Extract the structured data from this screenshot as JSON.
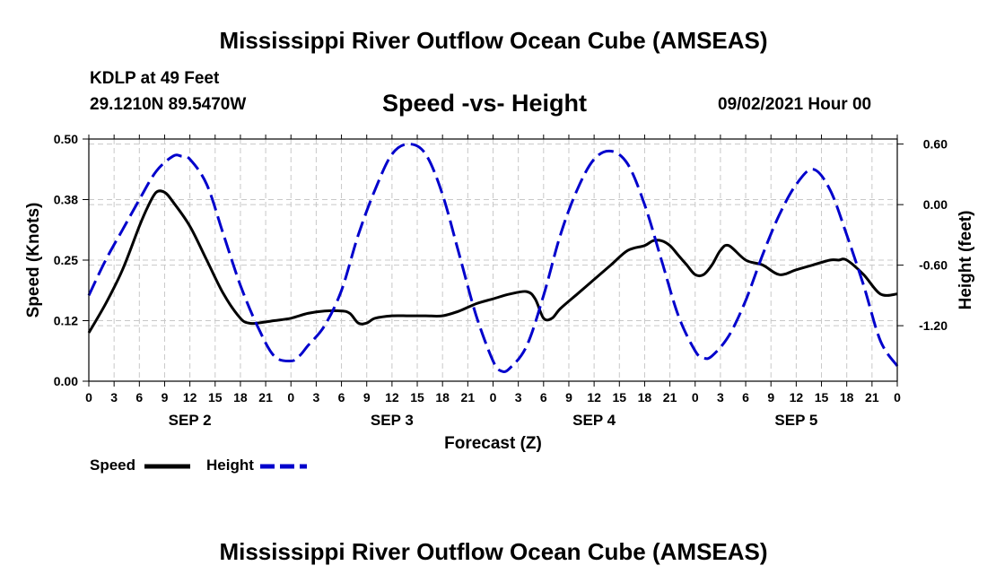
{
  "header": {
    "title": "Mississippi River Outflow Ocean Cube (AMSEAS)",
    "station": "KDLP at 49 Feet",
    "coords": "29.1210N  89.5470W",
    "subtitle": "Speed -vs- Height",
    "datetime": "09/02/2021 Hour 00"
  },
  "footer": {
    "title": "Mississippi River Outflow Ocean Cube (AMSEAS)"
  },
  "legend": {
    "speed_label": "Speed",
    "height_label": "Height"
  },
  "colors": {
    "speed": "#000000",
    "height": "#0000cc",
    "grid": "#c8c8c8"
  },
  "chart_data": {
    "type": "line",
    "title": "Speed -vs- Height",
    "xlabel": "Forecast (Z)",
    "ylabel": "Speed (Knots)",
    "y2label": "Height (feet)",
    "xlim": [
      0,
      96
    ],
    "ylim": [
      0,
      0.5
    ],
    "y2lim": [
      -1.75,
      0.65
    ],
    "x_ticks": [
      0,
      3,
      6,
      9,
      12,
      15,
      18,
      21,
      24,
      27,
      30,
      33,
      36,
      39,
      42,
      45,
      48,
      51,
      54,
      57,
      60,
      63,
      66,
      69,
      72,
      75,
      78,
      81,
      84,
      87,
      90,
      93,
      96
    ],
    "x_tick_labels": [
      "0",
      "3",
      "6",
      "9",
      "12",
      "15",
      "18",
      "21",
      "0",
      "3",
      "6",
      "9",
      "12",
      "15",
      "18",
      "21",
      "0",
      "3",
      "6",
      "9",
      "12",
      "15",
      "18",
      "21",
      "0",
      "3",
      "6",
      "9",
      "12",
      "15",
      "18",
      "21",
      "0"
    ],
    "day_labels": [
      {
        "label": "SEP 2",
        "x": 12
      },
      {
        "label": "SEP 3",
        "x": 36
      },
      {
        "label": "SEP 4",
        "x": 60
      },
      {
        "label": "SEP 5",
        "x": 84
      }
    ],
    "y_ticks": [
      0.0,
      0.125,
      0.25,
      0.375,
      0.5
    ],
    "y_tick_labels": [
      "0.00",
      "0.12",
      "0.25",
      "0.38",
      "0.50"
    ],
    "y2_ticks": [
      0.6,
      0.0,
      -0.6,
      -1.2
    ],
    "y2_tick_labels": [
      "0.60",
      "0.00",
      "-0.60",
      "-1.20"
    ],
    "grid": true,
    "series": [
      {
        "name": "Speed",
        "axis": "left",
        "style": "solid",
        "x": [
          0,
          2,
          4,
          6,
          7,
          8,
          9,
          10,
          12,
          14,
          16,
          18,
          19,
          20,
          22,
          24,
          26,
          28,
          30,
          31,
          32,
          33,
          34,
          36,
          38,
          40,
          42,
          44,
          46,
          48,
          50,
          52,
          53,
          54,
          55,
          56,
          58,
          60,
          62,
          64,
          66,
          67,
          68,
          69,
          70,
          71,
          72,
          73,
          74,
          75,
          76,
          78,
          80,
          82,
          84,
          86,
          88,
          89,
          90,
          92,
          94,
          96
        ],
        "values": [
          0.1,
          0.16,
          0.23,
          0.32,
          0.36,
          0.39,
          0.39,
          0.37,
          0.32,
          0.25,
          0.18,
          0.13,
          0.12,
          0.12,
          0.125,
          0.13,
          0.14,
          0.145,
          0.145,
          0.14,
          0.12,
          0.12,
          0.13,
          0.135,
          0.135,
          0.135,
          0.135,
          0.145,
          0.16,
          0.17,
          0.18,
          0.185,
          0.17,
          0.13,
          0.13,
          0.15,
          0.18,
          0.21,
          0.24,
          0.27,
          0.28,
          0.29,
          0.29,
          0.28,
          0.26,
          0.24,
          0.22,
          0.22,
          0.24,
          0.27,
          0.28,
          0.25,
          0.24,
          0.22,
          0.23,
          0.24,
          0.25,
          0.25,
          0.25,
          0.22,
          0.18,
          0.18
        ]
      },
      {
        "name": "Height",
        "axis": "right",
        "style": "dashed",
        "x": [
          0,
          2,
          4,
          6,
          8,
          10,
          11,
          12,
          14,
          16,
          18,
          20,
          22,
          24,
          25,
          26,
          28,
          30,
          32,
          34,
          36,
          38,
          40,
          42,
          44,
          46,
          48,
          49,
          50,
          52,
          54,
          56,
          58,
          60,
          62,
          64,
          66,
          68,
          70,
          72,
          73,
          74,
          76,
          78,
          80,
          82,
          84,
          86,
          88,
          90,
          92,
          94,
          96
        ],
        "values": [
          -0.9,
          -0.55,
          -0.25,
          0.05,
          0.33,
          0.48,
          0.48,
          0.45,
          0.2,
          -0.3,
          -0.8,
          -1.2,
          -1.5,
          -1.55,
          -1.5,
          -1.4,
          -1.2,
          -0.85,
          -0.3,
          0.15,
          0.5,
          0.6,
          0.5,
          0.1,
          -0.5,
          -1.1,
          -1.55,
          -1.65,
          -1.62,
          -1.4,
          -0.9,
          -0.3,
          0.15,
          0.45,
          0.53,
          0.4,
          0.0,
          -0.55,
          -1.1,
          -1.45,
          -1.52,
          -1.5,
          -1.3,
          -0.95,
          -0.5,
          -0.1,
          0.2,
          0.35,
          0.15,
          -0.3,
          -0.8,
          -1.35,
          -1.6
        ]
      }
    ]
  }
}
